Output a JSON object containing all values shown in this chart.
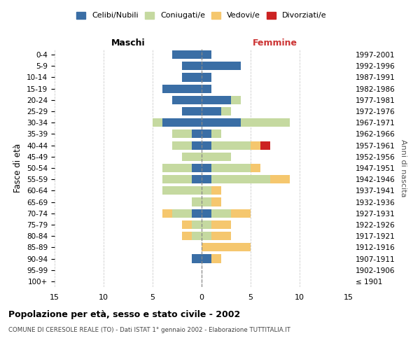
{
  "age_groups": [
    "100+",
    "95-99",
    "90-94",
    "85-89",
    "80-84",
    "75-79",
    "70-74",
    "65-69",
    "60-64",
    "55-59",
    "50-54",
    "45-49",
    "40-44",
    "35-39",
    "30-34",
    "25-29",
    "20-24",
    "15-19",
    "10-14",
    "5-9",
    "0-4"
  ],
  "birth_years": [
    "≤ 1901",
    "1902-1906",
    "1907-1911",
    "1912-1916",
    "1917-1921",
    "1922-1926",
    "1927-1931",
    "1932-1936",
    "1937-1941",
    "1942-1946",
    "1947-1951",
    "1952-1956",
    "1957-1961",
    "1962-1966",
    "1967-1971",
    "1972-1976",
    "1977-1981",
    "1982-1986",
    "1987-1991",
    "1992-1996",
    "1997-2001"
  ],
  "male": {
    "celibi": [
      0,
      0,
      1,
      0,
      0,
      0,
      1,
      0,
      0,
      1,
      1,
      0,
      1,
      1,
      4,
      2,
      3,
      4,
      2,
      2,
      3
    ],
    "coniugati": [
      0,
      0,
      0,
      0,
      1,
      1,
      2,
      1,
      4,
      3,
      3,
      2,
      2,
      2,
      1,
      0,
      0,
      0,
      0,
      0,
      0
    ],
    "vedovi": [
      0,
      0,
      0,
      0,
      1,
      1,
      1,
      0,
      0,
      0,
      0,
      0,
      0,
      0,
      0,
      0,
      0,
      0,
      0,
      0,
      0
    ],
    "divorziati": [
      0,
      0,
      0,
      0,
      0,
      0,
      0,
      0,
      0,
      0,
      0,
      0,
      0,
      0,
      0,
      0,
      0,
      0,
      0,
      0,
      0
    ]
  },
  "female": {
    "nubili": [
      0,
      0,
      1,
      0,
      0,
      0,
      1,
      0,
      0,
      1,
      1,
      0,
      1,
      1,
      4,
      2,
      3,
      1,
      1,
      4,
      1
    ],
    "coniugate": [
      0,
      0,
      0,
      0,
      1,
      1,
      2,
      1,
      1,
      6,
      4,
      3,
      4,
      1,
      5,
      1,
      1,
      0,
      0,
      0,
      0
    ],
    "vedove": [
      0,
      0,
      1,
      5,
      2,
      2,
      2,
      1,
      1,
      2,
      1,
      0,
      1,
      0,
      0,
      0,
      0,
      0,
      0,
      0,
      0
    ],
    "divorziate": [
      0,
      0,
      0,
      0,
      0,
      0,
      0,
      0,
      0,
      0,
      0,
      0,
      1,
      0,
      0,
      0,
      0,
      0,
      0,
      0,
      0
    ]
  },
  "colors": {
    "celibi": "#3a6ea5",
    "coniugati": "#c5d9a0",
    "vedovi": "#f5c76e",
    "divorziati": "#cc2222"
  },
  "xlim": 15,
  "title": "Popolazione per età, sesso e stato civile - 2002",
  "subtitle": "COMUNE DI CERESOLE REALE (TO) - Dati ISTAT 1° gennaio 2002 - Elaborazione TUTTITALIA.IT",
  "ylabel": "Fasce di età",
  "right_label": "Anni di nascita",
  "maschi_label": "Maschi",
  "femmine_label": "Femmine",
  "legend_labels": [
    "Celibi/Nubili",
    "Coniugati/e",
    "Vedovi/e",
    "Divorziati/e"
  ],
  "bg_color": "#ffffff",
  "grid_color": "#cccccc"
}
